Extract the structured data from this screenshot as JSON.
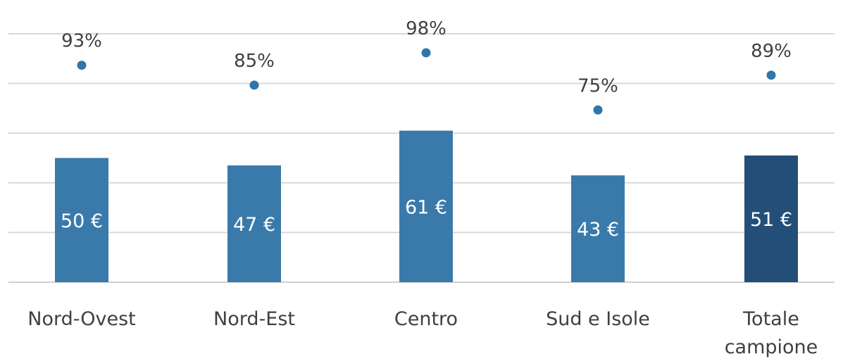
{
  "chart_data": {
    "type": "bar",
    "categories": [
      "Nord-Ovest",
      "Nord-Est",
      "Centro",
      "Sud e Isole",
      "Totale campione"
    ],
    "category_lines": [
      [
        "Nord-Ovest"
      ],
      [
        "Nord-Est"
      ],
      [
        "Centro"
      ],
      [
        "Sud e Isole"
      ],
      [
        "Totale",
        "campione"
      ]
    ],
    "series": [
      {
        "kind": "bar",
        "values": [
          50,
          47,
          61,
          43,
          51
        ],
        "labels": [
          "50 €",
          "47 €",
          "61 €",
          "43 €",
          "51 €"
        ],
        "color": "#3a7aab",
        "highlight_color": "#234e78",
        "highlight_index": 4
      },
      {
        "kind": "dot",
        "values": [
          93,
          85,
          98,
          75,
          89
        ],
        "labels": [
          "93%",
          "85%",
          "98%",
          "75%",
          "89%"
        ],
        "color": "#2f76ad"
      }
    ],
    "title": "",
    "xlabel": "",
    "ylabel": "",
    "ylim": [
      0,
      120
    ],
    "grid": true,
    "legend": "none"
  }
}
